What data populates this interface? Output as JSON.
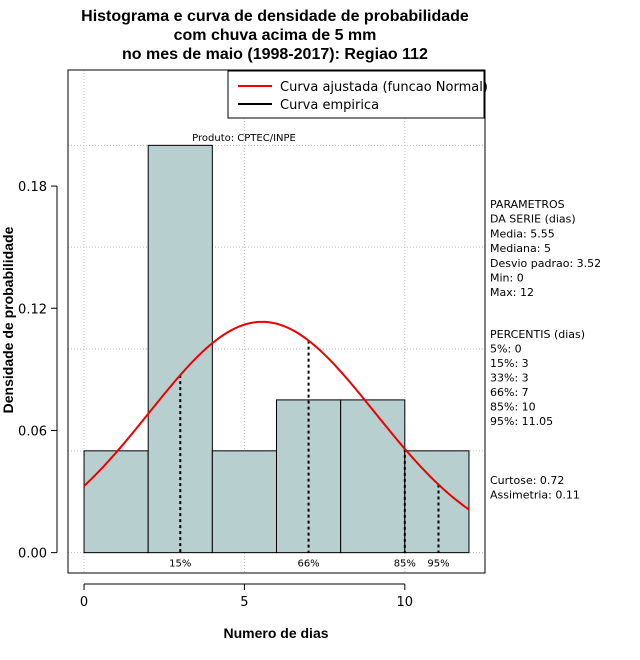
{
  "chart_data": {
    "type": "bar",
    "title_lines": [
      "Histograma e curva de densidade de probabilidade",
      "com chuva acima de 5 mm",
      "no mes de maio (1998-2017): Regiao 112"
    ],
    "xlabel": "Numero de dias",
    "ylabel": "Densidade de probabilidade",
    "xlim": [
      -0.5,
      12.5
    ],
    "ylim": [
      -0.01,
      0.237
    ],
    "x_ticks": [
      0,
      5,
      10
    ],
    "x_tick_labels": [
      "0",
      "5",
      "10"
    ],
    "y_ticks": [
      0.0,
      0.06,
      0.12,
      0.18
    ],
    "y_tick_labels": [
      "0.00",
      "0.06",
      "0.12",
      "0.18"
    ],
    "grid": true,
    "bins": [
      {
        "start": 0,
        "end": 2,
        "density": 0.05
      },
      {
        "start": 2,
        "end": 4,
        "density": 0.2
      },
      {
        "start": 4,
        "end": 6,
        "density": 0.05
      },
      {
        "start": 6,
        "end": 8,
        "density": 0.075
      },
      {
        "start": 8,
        "end": 10,
        "density": 0.075
      },
      {
        "start": 10,
        "end": 12,
        "density": 0.05
      }
    ],
    "bar_color": "#b7cfcf",
    "normal_curve": {
      "name": "Curva ajustada (funcao Normal)",
      "mean": 5.55,
      "sd": 3.52,
      "x_range": [
        0,
        12
      ],
      "color": "#ee0000"
    },
    "empirical_curve": {
      "name": "Curva empirica",
      "color": "#000000"
    },
    "legend": {
      "position": "top-right",
      "entries": [
        {
          "label": "Curva ajustada (funcao Normal)",
          "color": "#ee0000"
        },
        {
          "label": "Curva empirica",
          "color": "#000000"
        }
      ]
    },
    "percentile_markers": [
      {
        "x": 3,
        "label": "15%"
      },
      {
        "x": 7,
        "label": "66%"
      },
      {
        "x": 10,
        "label": "85%"
      },
      {
        "x": 11.05,
        "label": "95%"
      }
    ],
    "annotation": "Produto: CPTEC/INPE",
    "side_panel": {
      "parametros_lines": [
        "PARAMETROS",
        "DA SERIE (dias)",
        "  Media: 5.55",
        "  Mediana: 5",
        "  Desvio padrao: 3.52",
        "  Min: 0",
        "  Max: 12"
      ],
      "percentis_lines": [
        "PERCENTIS (dias)",
        "   5%: 0",
        "  15%: 3",
        "  33%: 3",
        "  66%: 7",
        "  85%: 10",
        "  95%: 11.05"
      ],
      "shape_lines": [
        "   Curtose: 0.72",
        "Assimetria: 0.11"
      ]
    }
  }
}
